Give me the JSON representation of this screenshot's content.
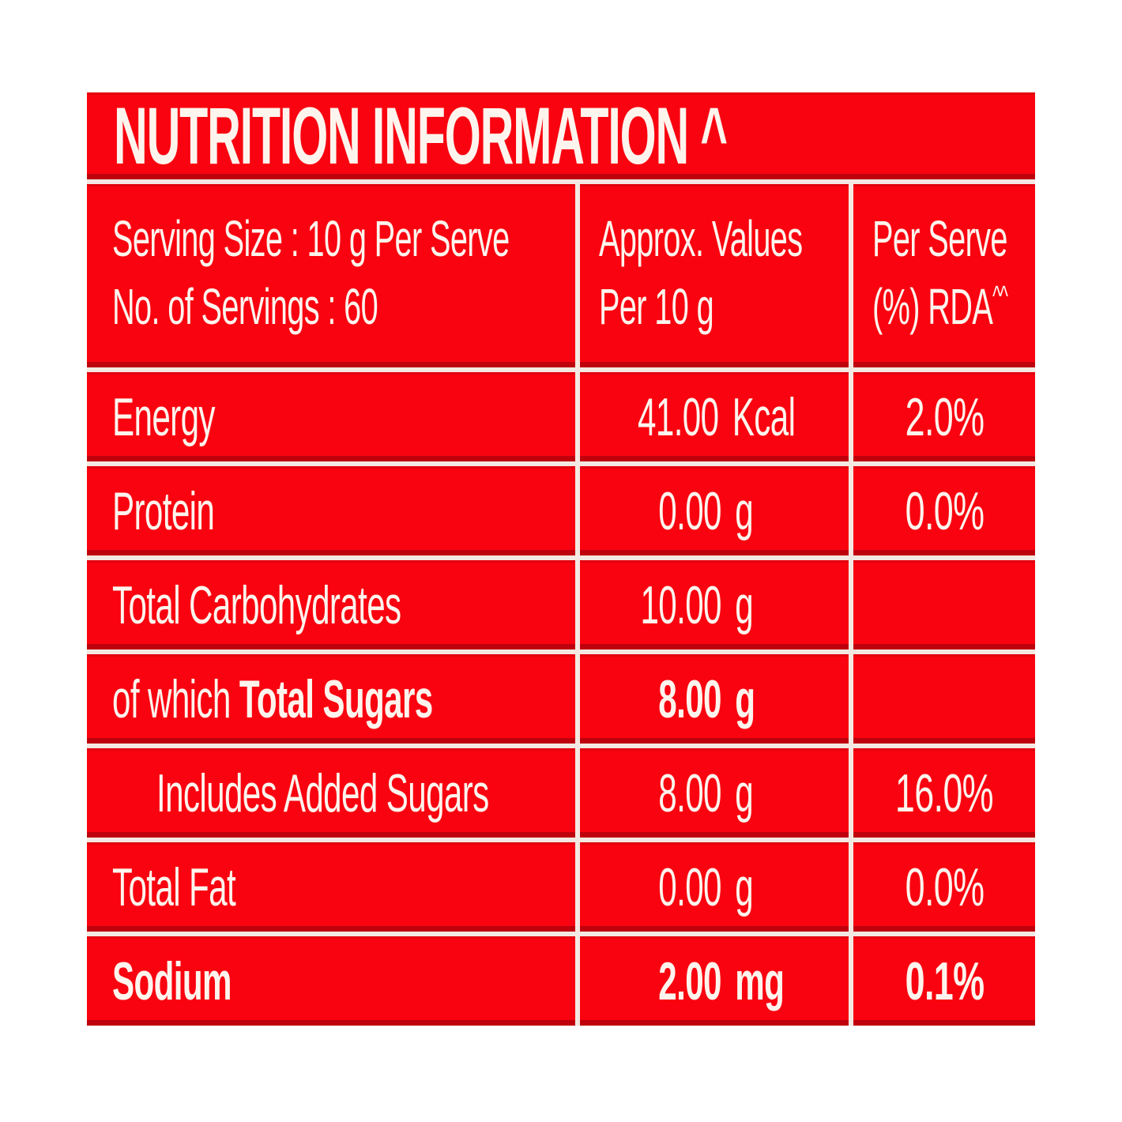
{
  "title": "NUTRITION INFORMATION ^",
  "colors": {
    "red": "#f90310",
    "ink": "#fdf4ed",
    "divider": "#f3e9e2"
  },
  "header": {
    "serving_line1": "Serving Size : 10 g Per Serve",
    "serving_line2": "No. of Servings : 60",
    "values_line1": "Approx. Values",
    "values_line2": "Per 10 g",
    "rda_line1": "Per Serve",
    "rda_line2": "(%) RDA",
    "rda_sup": "^^"
  },
  "rows": [
    {
      "label": "Energy",
      "value": "41.00",
      "unit": "Kcal",
      "rda": "2.0%"
    },
    {
      "label": "Protein",
      "value": "0.00",
      "unit": "g",
      "rda": "0.0%"
    },
    {
      "label": "Total Carbohydrates",
      "value": "10.00",
      "unit": "g",
      "rda": ""
    },
    {
      "label_prefix": "of which",
      "label": "Total Sugars",
      "value": "8.00",
      "unit": "g",
      "rda": ""
    },
    {
      "label": "Includes Added Sugars",
      "value": "8.00",
      "unit": "g",
      "rda": "16.0%"
    },
    {
      "label": "Total Fat",
      "value": "0.00",
      "unit": "g",
      "rda": "0.0%"
    },
    {
      "label": "Sodium",
      "value": "2.00",
      "unit": "mg",
      "rda": "0.1%"
    }
  ]
}
